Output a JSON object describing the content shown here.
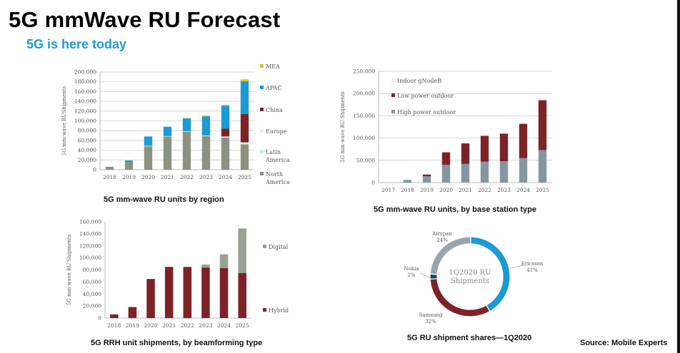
{
  "page": {
    "title": "5G mmWave RU Forecast",
    "subtitle": "5G is here today",
    "source": "Source: Mobile Experts"
  },
  "chart_data": [
    {
      "id": "by-region",
      "type": "bar",
      "stacked": true,
      "title": "5G mm-wave RU units by region",
      "ylabel": "5G mm-wave RUShipments",
      "xlabel": "",
      "ylim": [
        0,
        200000
      ],
      "yticks": [
        "0",
        "20,000",
        "40,000",
        "60,000",
        "80,000",
        "100,000",
        "120,000",
        "140,000",
        "160,000",
        "180,000",
        "200,000"
      ],
      "ytick_values": [
        0,
        20000,
        40000,
        60000,
        80000,
        100000,
        120000,
        140000,
        160000,
        180000,
        200000
      ],
      "grid": true,
      "legend": "right",
      "categories": [
        "2018",
        "2019",
        "2020",
        "2021",
        "2022",
        "2023",
        "2024",
        "2025"
      ],
      "series": [
        {
          "name": "North America",
          "color": "#8c9282",
          "values": [
            6000,
            16000,
            48000,
            68000,
            78000,
            69000,
            66000,
            52000
          ]
        },
        {
          "name": "Latin America",
          "color": "#bfe6f7",
          "values": [
            0,
            0,
            0,
            0,
            0,
            0,
            0,
            0
          ]
        },
        {
          "name": "Europe",
          "color": "#f2f2f2",
          "values": [
            0,
            0,
            1000,
            1000,
            1000,
            1000,
            2000,
            4000
          ]
        },
        {
          "name": "China",
          "color": "#7d2328",
          "values": [
            0,
            0,
            0,
            0,
            0,
            0,
            16000,
            58000
          ]
        },
        {
          "name": "APAC",
          "color": "#1a9ad6",
          "values": [
            0,
            3000,
            19000,
            19000,
            26000,
            39000,
            47000,
            67000
          ]
        },
        {
          "name": "MEA",
          "color": "#d4c621",
          "values": [
            0,
            0,
            0,
            0,
            1000,
            2000,
            2000,
            4000
          ]
        }
      ]
    },
    {
      "id": "by-base-station",
      "type": "bar",
      "stacked": true,
      "title": "5G mm-wave RU units, by base station type",
      "ylabel": "5G mm-wave RU Shipments",
      "xlabel": "",
      "ylim": [
        0,
        250000
      ],
      "yticks": [
        "0",
        "50,000",
        "100,000",
        "150,000",
        "200,000",
        "250,000"
      ],
      "ytick_values": [
        0,
        50000,
        100000,
        150000,
        200000,
        250000
      ],
      "grid": true,
      "legend": "top-left",
      "categories": [
        "2017",
        "2018",
        "2019",
        "2020",
        "2021",
        "2022",
        "2023",
        "2024",
        "2025"
      ],
      "series": [
        {
          "name": "High power outdoor",
          "color": "#8497a0",
          "values": [
            0,
            6000,
            14000,
            40000,
            42000,
            47000,
            48000,
            55000,
            73000
          ]
        },
        {
          "name": "Low power outdoor",
          "color": "#7d2328",
          "values": [
            0,
            0,
            4000,
            28000,
            46000,
            58000,
            62000,
            77000,
            112000
          ]
        },
        {
          "name": "Indoor gNodeB",
          "color": "#f4ece8",
          "values": [
            0,
            0,
            0,
            0,
            0,
            1000,
            2000,
            2000,
            4000
          ]
        }
      ]
    },
    {
      "id": "by-beamforming",
      "type": "bar",
      "stacked": true,
      "title": "5G RRH unit shipments, by beamforming type",
      "ylabel": "5G mm-wave RU Shipments",
      "xlabel": "",
      "ylim": [
        0,
        160000
      ],
      "yticks": [
        "0",
        "20,000",
        "40,000",
        "60,000",
        "80,000",
        "100,000",
        "120,000",
        "140,000",
        "160,000"
      ],
      "ytick_values": [
        0,
        20000,
        40000,
        60000,
        80000,
        100000,
        120000,
        140000,
        160000
      ],
      "grid": false,
      "legend": "right",
      "categories": [
        "2018",
        "2019",
        "2020",
        "2021",
        "2022",
        "2023",
        "2024",
        "2025"
      ],
      "series": [
        {
          "name": "Hybrid",
          "color": "#7d2328",
          "values": [
            6000,
            18000,
            65000,
            85000,
            85000,
            84000,
            83000,
            75000
          ]
        },
        {
          "name": "Digital",
          "color": "#98a290",
          "values": [
            0,
            1000,
            0,
            0,
            0,
            5000,
            23000,
            74000
          ]
        }
      ]
    },
    {
      "id": "shares-1q2020",
      "type": "pie",
      "donut": true,
      "title": "5G RU shipment shares—1Q2020",
      "center_label": [
        "1Q2020 RU",
        "Shipments"
      ],
      "slices": [
        {
          "name": "Ericsson",
          "value": 41,
          "label": "41%",
          "color": "#1a9ad6"
        },
        {
          "name": "Samsung",
          "value": 32,
          "label": "32%",
          "color": "#7d2328"
        },
        {
          "name": "Nokia",
          "value": 2,
          "label": "2%",
          "color": "#0d4f6a"
        },
        {
          "name": "Airspan",
          "value": 24,
          "label": "24%",
          "color": "#9aa5ab"
        }
      ]
    }
  ]
}
